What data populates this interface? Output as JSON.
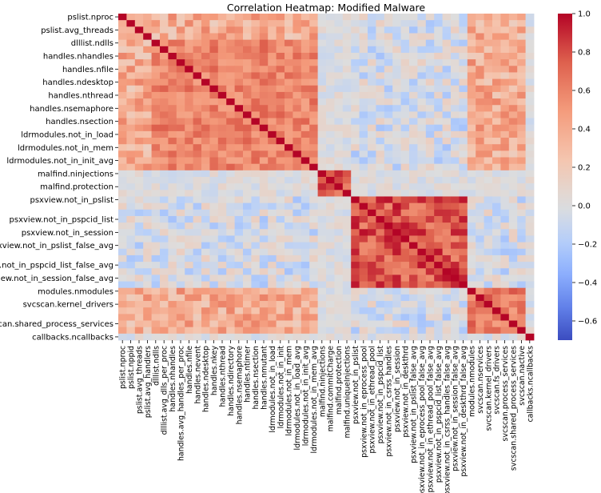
{
  "chart_data": {
    "type": "heatmap",
    "title": "Correlation Heatmap: Modified Malware",
    "xlabel": "",
    "ylabel": "",
    "x_labels": [
      "pslist.nproc",
      "pslist.nppid",
      "pslist.avg_threads",
      "pslist.avg_handlers",
      "dlllist.ndlls",
      "dlllist.avg_dlls_per_proc",
      "handles.nhandles",
      "handles.avg_handles_per_proc",
      "handles.nfile",
      "handles.nevent",
      "handles.ndesktop",
      "handles.nkey",
      "handles.nthread",
      "handles.ndirectory",
      "handles.nsemaphore",
      "handles.ntimer",
      "handles.nsection",
      "handles.nmutant",
      "ldrmodules.not_in_load",
      "ldrmodules.not_in_init",
      "ldrmodules.not_in_mem",
      "ldrmodules.not_in_load_avg",
      "ldrmodules.not_in_init_avg",
      "ldrmodules.not_in_mem_avg",
      "malfind.ninjections",
      "malfind.commitCharge",
      "malfind.protection",
      "malfind.uniqueInjections",
      "psxview.not_in_pslist",
      "psxview.not_in_eprocess_pool",
      "psxview.not_in_ethread_pool",
      "psxview.not_in_pspcid_list",
      "psxview.not_in_csrss_handles",
      "psxview.not_in_session",
      "psxview.not_in_deskthrd",
      "psxview.not_in_pslist_false_avg",
      "psxview.not_in_eprocess_pool_false_avg",
      "psxview.not_in_ethread_pool_false_avg",
      "psxview.not_in_pspcid_list_false_avg",
      "psxview.not_in_csrss_handles_false_avg",
      "psxview.not_in_session_false_avg",
      "psxview.not_in_deskthrd_false_avg",
      "modules.nmodules",
      "svcscan.nservices",
      "svcscan.kernel_drivers",
      "svcscan.fs_drivers",
      "svcscan.process_services",
      "svcscan.shared_process_services",
      "svcscan.nactive",
      "callbacks.ncallbacks"
    ],
    "y_tick_labels": [
      "pslist.nproc",
      "pslist.avg_threads",
      "dlllist.ndlls",
      "handles.nhandles",
      "handles.nfile",
      "handles.ndesktop",
      "handles.nthread",
      "handles.nsemaphore",
      "handles.nsection",
      "ldrmodules.not_in_load",
      "ldrmodules.not_in_mem",
      "ldrmodules.not_in_init_avg",
      "malfind.ninjections",
      "malfind.protection",
      "psxview.not_in_pslist",
      "psxview.not_in_pspcid_list",
      "psxview.not_in_session",
      "psxview.not_in_pslist_false_avg",
      "psxview.not_in_pspcid_list_false_avg",
      "psxview.not_in_session_false_avg",
      "modules.nmodules",
      "svcscan.kernel_drivers",
      "svcscan.shared_process_services",
      "callbacks.ncallbacks"
    ],
    "groups": [
      {
        "range": [
          0,
          3
        ],
        "value": 0.5
      },
      {
        "range": [
          4,
          23
        ],
        "value": 0.7
      },
      {
        "range": [
          24,
          27
        ],
        "value": 0.9
      },
      {
        "range": [
          28,
          41
        ],
        "value": 0.92
      },
      {
        "range": [
          42,
          48
        ],
        "value": 0.75
      }
    ],
    "colorbar": {
      "min": -0.7,
      "max": 1.0,
      "ticks": [
        1.0,
        0.8,
        0.6,
        0.4,
        0.2,
        0.0,
        -0.2,
        -0.4,
        -0.6
      ],
      "tick_labels": [
        "1.0",
        "0.8",
        "0.6",
        "0.4",
        "0.2",
        "0.0",
        "−0.2",
        "−0.4",
        "−0.6"
      ],
      "colormap": "coolwarm"
    }
  }
}
